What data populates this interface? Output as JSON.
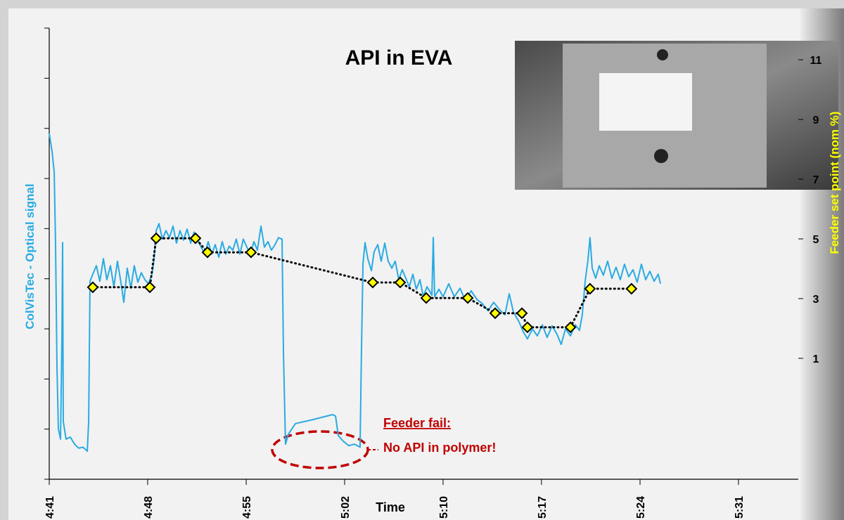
{
  "chart_data": {
    "type": "line",
    "title": "API in EVA",
    "x_label": "Time",
    "y_label": "ColVisTec - Optical signal",
    "y2_label": "Feeder set point (nom %)",
    "annotations": [
      "Feeder fail:",
      "No API in polymer!"
    ],
    "xlim": [
      281,
      335.34
    ],
    "xticks": [
      {
        "value": 281,
        "label": "4:41"
      },
      {
        "value": 288.14,
        "label": "4:48"
      },
      {
        "value": 295.29,
        "label": "4:55"
      },
      {
        "value": 302.43,
        "label": "5:02"
      },
      {
        "value": 309.57,
        "label": "5:10"
      },
      {
        "value": 316.71,
        "label": "5:17"
      },
      {
        "value": 323.86,
        "label": "5:24"
      },
      {
        "value": 331,
        "label": "5:31"
      }
    ],
    "ylim": [
      0,
      9
    ],
    "yticks": [
      0,
      1,
      2,
      3,
      4,
      5,
      6,
      7,
      8,
      9
    ],
    "y2lim": [
      -3.05,
      12.06
    ],
    "y2ticks": [
      1,
      3,
      5,
      7,
      9,
      11
    ],
    "series": [
      {
        "color": "#29abe2",
        "x": [
          281.0,
          281.2,
          281.36,
          281.46,
          281.56,
          281.66,
          281.82,
          281.92,
          281.97,
          282.02,
          282.22,
          282.53,
          282.84,
          283.14,
          283.45,
          283.76,
          283.86,
          283.96,
          284.16,
          284.42,
          284.67,
          284.93,
          285.18,
          285.44,
          285.69,
          285.95,
          286.2,
          286.41,
          286.66,
          286.92,
          287.17,
          287.43,
          287.68,
          287.94,
          288.19,
          288.45,
          288.6,
          288.76,
          288.96,
          289.21,
          289.47,
          289.72,
          289.98,
          290.23,
          290.49,
          290.74,
          291.0,
          291.26,
          291.51,
          291.77,
          292.02,
          292.28,
          292.53,
          292.79,
          293.04,
          293.3,
          293.55,
          293.81,
          294.06,
          294.32,
          294.57,
          294.83,
          295.08,
          295.34,
          295.59,
          295.85,
          296.1,
          296.36,
          296.61,
          296.87,
          297.12,
          297.38,
          297.63,
          297.89,
          297.99,
          298.14,
          298.35,
          298.86,
          300.13,
          301.56,
          301.77,
          301.97,
          302.33,
          302.73,
          303.14,
          303.55,
          303.65,
          303.76,
          303.91,
          304.11,
          304.37,
          304.57,
          304.83,
          305.08,
          305.34,
          305.59,
          305.85,
          306.1,
          306.36,
          306.61,
          306.87,
          307.12,
          307.38,
          307.63,
          307.89,
          308.14,
          308.4,
          308.65,
          308.76,
          308.86,
          308.96,
          309.27,
          309.57,
          309.98,
          310.39,
          310.8,
          311.2,
          311.61,
          312.02,
          312.43,
          312.84,
          313.24,
          313.65,
          314.06,
          314.37,
          314.67,
          315.08,
          315.39,
          315.69,
          316.05,
          316.41,
          316.77,
          317.12,
          317.48,
          317.84,
          318.14,
          318.45,
          318.81,
          319.16,
          319.47,
          319.67,
          319.88,
          320.08,
          320.23,
          320.39,
          320.64,
          320.9,
          321.2,
          321.51,
          321.82,
          322.12,
          322.43,
          322.73,
          323.04,
          323.35,
          323.65,
          323.96,
          324.27,
          324.57,
          324.88,
          325.18,
          325.34
        ],
        "values": [
          6.9,
          6.55,
          6.13,
          4.65,
          2.27,
          1.01,
          0.8,
          2.83,
          4.72,
          1.15,
          0.8,
          0.84,
          0.7,
          0.62,
          0.64,
          0.56,
          1.15,
          3.95,
          4.09,
          4.26,
          3.95,
          4.4,
          3.98,
          4.26,
          3.84,
          4.35,
          3.93,
          3.53,
          4.21,
          3.81,
          4.26,
          3.93,
          4.12,
          3.98,
          3.9,
          4.09,
          4.37,
          4.96,
          5.1,
          4.79,
          4.96,
          4.82,
          5.05,
          4.71,
          4.96,
          4.77,
          4.99,
          4.71,
          4.93,
          4.77,
          4.63,
          4.49,
          4.74,
          4.49,
          4.68,
          4.43,
          4.74,
          4.49,
          4.65,
          4.57,
          4.79,
          4.49,
          4.79,
          4.63,
          4.49,
          4.74,
          4.57,
          5.05,
          4.63,
          4.74,
          4.57,
          4.68,
          4.82,
          4.79,
          2.55,
          0.7,
          0.9,
          1.11,
          1.19,
          1.29,
          1.26,
          0.87,
          0.76,
          0.67,
          0.7,
          0.64,
          2.55,
          4.3,
          4.72,
          4.4,
          4.16,
          4.54,
          4.68,
          4.35,
          4.71,
          4.35,
          4.21,
          4.35,
          3.98,
          4.18,
          4.01,
          3.84,
          4.09,
          3.79,
          3.98,
          3.64,
          3.84,
          3.73,
          3.67,
          4.82,
          3.64,
          3.79,
          3.64,
          3.9,
          3.64,
          3.81,
          3.56,
          3.76,
          3.59,
          3.5,
          3.36,
          3.53,
          3.39,
          3.28,
          3.7,
          3.34,
          3.14,
          2.94,
          2.8,
          3.0,
          2.86,
          3.08,
          2.83,
          3.06,
          2.89,
          2.69,
          3.0,
          2.86,
          3.08,
          2.97,
          3.28,
          3.95,
          4.37,
          4.82,
          4.21,
          4.01,
          4.26,
          4.07,
          4.35,
          4.01,
          4.23,
          3.98,
          4.29,
          4.04,
          4.18,
          3.93,
          4.29,
          3.98,
          4.15,
          3.95,
          4.09,
          3.9
        ]
      },
      {
        "color": "#000000",
        "marker_color": "#ffff00",
        "axis": "y2",
        "line_style": "dotted",
        "x": [
          284.16,
          288.3,
          288.76,
          291.61,
          292.48,
          295.64,
          304.47,
          306.46,
          308.35,
          311.36,
          313.35,
          315.29,
          315.69,
          318.81,
          320.23,
          323.24
        ],
        "values": [
          3.38,
          3.38,
          5.02,
          5.02,
          4.55,
          4.55,
          3.54,
          3.54,
          3.02,
          3.02,
          2.51,
          2.51,
          2.04,
          2.04,
          3.33,
          3.33
        ]
      }
    ]
  }
}
